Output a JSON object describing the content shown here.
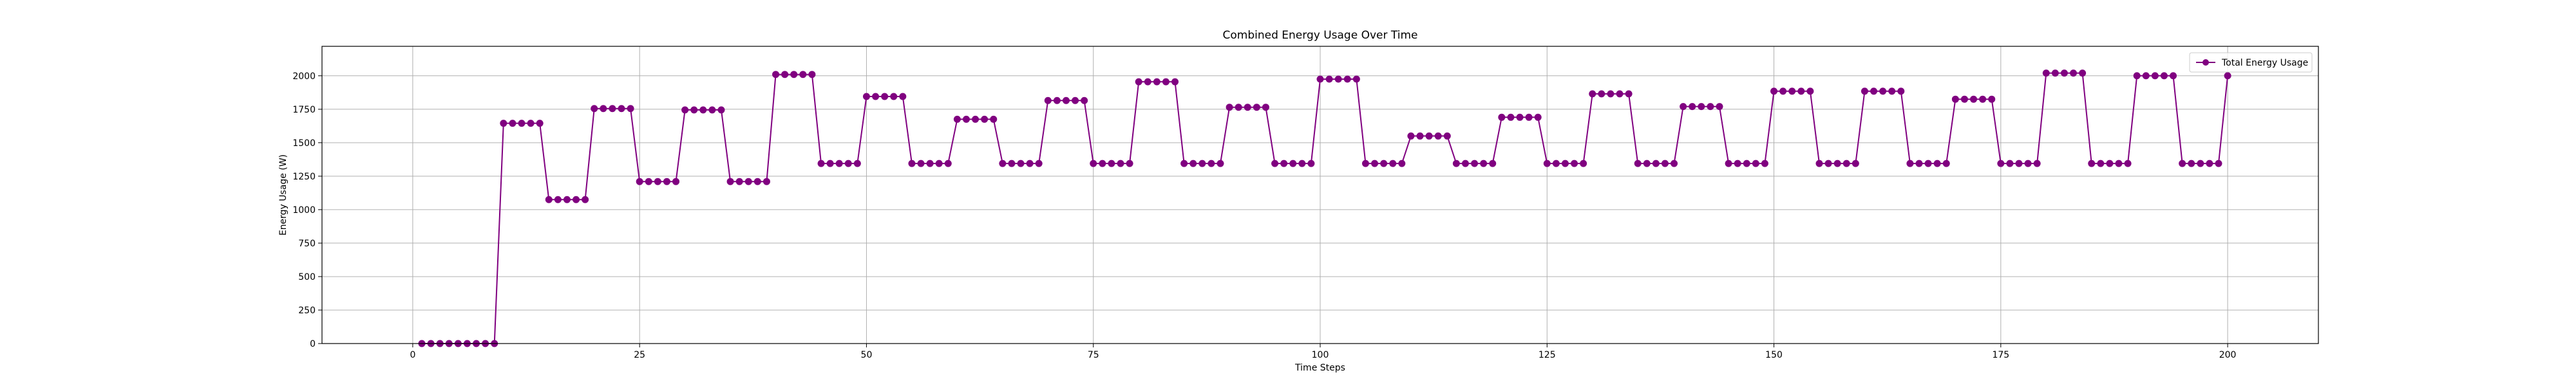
{
  "chart_data": {
    "type": "line",
    "title": "Combined Energy Usage Over Time",
    "xlabel": "Time Steps",
    "ylabel": "Energy Usage (W)",
    "xlim": [
      -10,
      210
    ],
    "ylim": [
      0,
      2220
    ],
    "xticks": [
      0,
      25,
      50,
      75,
      100,
      125,
      150,
      175,
      200
    ],
    "yticks": [
      0,
      250,
      500,
      750,
      1000,
      1250,
      1500,
      1750,
      2000
    ],
    "grid": true,
    "legend_position": "top-right",
    "colors": {
      "series": "#800080",
      "grid": "#b0b0b0",
      "axis": "#000000"
    },
    "series": [
      {
        "name": "Total Energy Usage",
        "marker": "circle",
        "x": [
          1,
          2,
          3,
          4,
          5,
          6,
          7,
          8,
          9,
          10,
          11,
          12,
          13,
          14,
          15,
          16,
          17,
          18,
          19,
          20,
          21,
          22,
          23,
          24,
          25,
          26,
          27,
          28,
          29,
          30,
          31,
          32,
          33,
          34,
          35,
          36,
          37,
          38,
          39,
          40,
          41,
          42,
          43,
          44,
          45,
          46,
          47,
          48,
          49,
          50,
          51,
          52,
          53,
          54,
          55,
          56,
          57,
          58,
          59,
          60,
          61,
          62,
          63,
          64,
          65,
          66,
          67,
          68,
          69,
          70,
          71,
          72,
          73,
          74,
          75,
          76,
          77,
          78,
          79,
          80,
          81,
          82,
          83,
          84,
          85,
          86,
          87,
          88,
          89,
          90,
          91,
          92,
          93,
          94,
          95,
          96,
          97,
          98,
          99,
          100,
          101,
          102,
          103,
          104,
          105,
          106,
          107,
          108,
          109,
          110,
          111,
          112,
          113,
          114,
          115,
          116,
          117,
          118,
          119,
          120,
          121,
          122,
          123,
          124,
          125,
          126,
          127,
          128,
          129,
          130,
          131,
          132,
          133,
          134,
          135,
          136,
          137,
          138,
          139,
          140,
          141,
          142,
          143,
          144,
          145,
          146,
          147,
          148,
          149,
          150,
          151,
          152,
          153,
          154,
          155,
          156,
          157,
          158,
          159,
          160,
          161,
          162,
          163,
          164,
          165,
          166,
          167,
          168,
          169,
          170,
          171,
          172,
          173,
          174,
          175,
          176,
          177,
          178,
          179,
          180,
          181,
          182,
          183,
          184,
          185,
          186,
          187,
          188,
          189,
          190,
          191,
          192,
          193,
          194,
          195,
          196,
          197,
          198,
          199,
          200
        ],
        "values": [
          0,
          0,
          0,
          0,
          0,
          0,
          0,
          0,
          0,
          1645,
          1645,
          1645,
          1645,
          1645,
          1075,
          1075,
          1075,
          1075,
          1075,
          1755,
          1755,
          1755,
          1755,
          1755,
          1210,
          1210,
          1210,
          1210,
          1210,
          1745,
          1745,
          1745,
          1745,
          1745,
          1210,
          1210,
          1210,
          1210,
          1210,
          2010,
          2010,
          2010,
          2010,
          2010,
          1345,
          1345,
          1345,
          1345,
          1345,
          1845,
          1845,
          1845,
          1845,
          1845,
          1345,
          1345,
          1345,
          1345,
          1345,
          1675,
          1675,
          1675,
          1675,
          1675,
          1345,
          1345,
          1345,
          1345,
          1345,
          1815,
          1815,
          1815,
          1815,
          1815,
          1345,
          1345,
          1345,
          1345,
          1345,
          1955,
          1955,
          1955,
          1955,
          1955,
          1345,
          1345,
          1345,
          1345,
          1345,
          1765,
          1765,
          1765,
          1765,
          1765,
          1345,
          1345,
          1345,
          1345,
          1345,
          1975,
          1975,
          1975,
          1975,
          1975,
          1345,
          1345,
          1345,
          1345,
          1345,
          1550,
          1550,
          1550,
          1550,
          1550,
          1345,
          1345,
          1345,
          1345,
          1345,
          1690,
          1690,
          1690,
          1690,
          1690,
          1345,
          1345,
          1345,
          1345,
          1345,
          1865,
          1865,
          1865,
          1865,
          1865,
          1345,
          1345,
          1345,
          1345,
          1345,
          1770,
          1770,
          1770,
          1770,
          1770,
          1345,
          1345,
          1345,
          1345,
          1345,
          1885,
          1885,
          1885,
          1885,
          1885,
          1345,
          1345,
          1345,
          1345,
          1345,
          1885,
          1885,
          1885,
          1885,
          1885,
          1345,
          1345,
          1345,
          1345,
          1345,
          1825,
          1825,
          1825,
          1825,
          1825,
          1345,
          1345,
          1345,
          1345,
          1345,
          2020,
          2020,
          2020,
          2020,
          2020,
          1345,
          1345,
          1345,
          1345,
          1345,
          2000,
          2000,
          2000,
          2000,
          2000,
          1345,
          1345,
          1345,
          1345,
          1345,
          2000
        ]
      }
    ]
  }
}
